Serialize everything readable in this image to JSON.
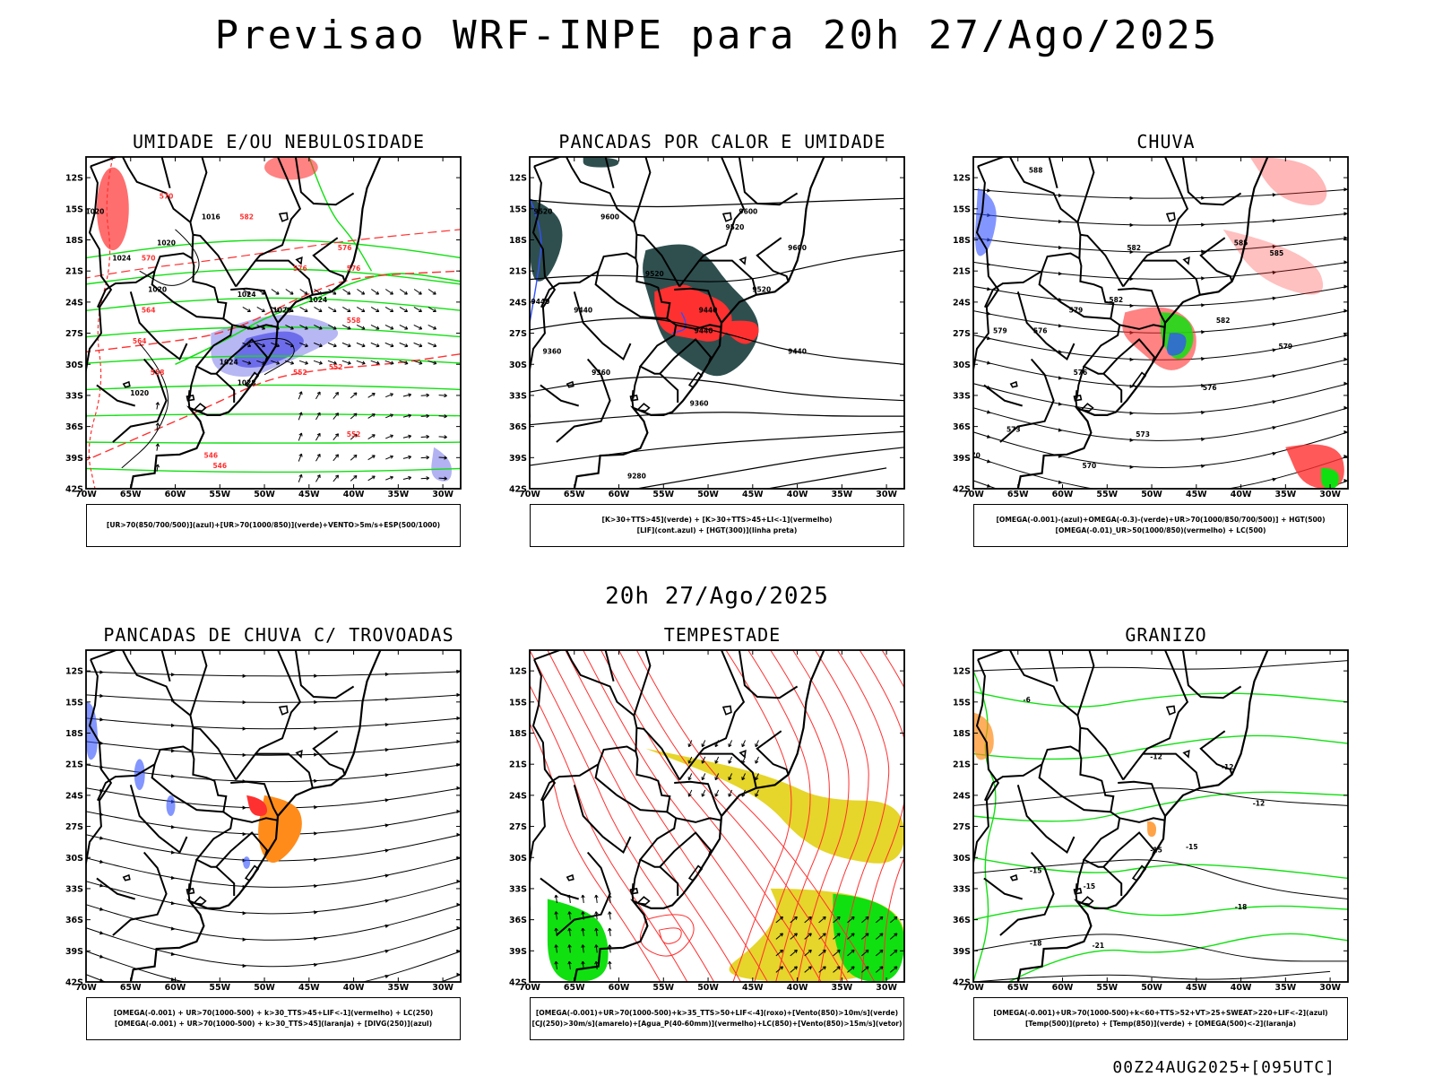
{
  "header": {
    "title": "Previsao WRF-INPE  para 20h 27/Ago/2025",
    "subtitle": "20h 27/Ago/2025",
    "footer": "00Z24AUG2025+[095UTC]"
  },
  "axes": {
    "lat_labels": [
      "12S",
      "15S",
      "18S",
      "21S",
      "24S",
      "27S",
      "30S",
      "33S",
      "36S",
      "39S",
      "42S"
    ],
    "lon_labels": [
      "70W",
      "65W",
      "60W",
      "55W",
      "50W",
      "45W",
      "40W",
      "35W",
      "30W"
    ]
  },
  "colors": {
    "red": "#ff3030",
    "green": "#10e010",
    "blue": "#3050ff",
    "lavender": "#9f9ff0",
    "darkteal": "#2f4f4f",
    "orange": "#ff8c1a",
    "yellow": "#e6d52a"
  },
  "panels": [
    {
      "id": "umidade",
      "title": "UMIDADE E/OU NEBULOSIDADE",
      "legend": [
        "[UR>70(850/700/500)](azul)+[UR>70(1000/850)](verde)+VENTO>5m/s+ESP(500/1000)"
      ],
      "labels": [
        "1020",
        "1016",
        "1020",
        "1024",
        "1020",
        "1024",
        "1020",
        "1024",
        "1028",
        "1024",
        "1020",
        "552",
        "570",
        "564",
        "582",
        "576",
        "576",
        "558",
        "552",
        "546",
        "570",
        "576",
        "564",
        "558",
        "552",
        "546"
      ]
    },
    {
      "id": "pancadas-calor",
      "title": "PANCADAS POR CALOR E UMIDADE",
      "legend": [
        "[K>30+TTS>45](verde) + [K>30+TTS>45+LI<-1](vermelho)",
        "[LIF](cont.azul) + [HGT(300)](linha preta)"
      ],
      "labels": [
        "9520",
        "9600",
        "9600",
        "9520",
        "9440",
        "9440",
        "9520",
        "9440",
        "9600",
        "9520",
        "9440",
        "9440",
        "9360",
        "9360",
        "9360",
        "9280"
      ]
    },
    {
      "id": "chuva",
      "title": "CHUVA",
      "legend": [
        "[OMEGA(-0.001)-(azul)+OMEGA(-0.3)-(verde)+UR>70(1000/850/700/500)] + HGT(500)",
        "[OMEGA(-0.01)_UR>50(1000/850)(vermelho) + LC(500)"
      ],
      "labels": [
        "588",
        "585",
        "582",
        "585",
        "582",
        "579",
        "579",
        "582",
        "576",
        "576",
        "579",
        "576",
        "573",
        "573",
        "570",
        "570"
      ]
    },
    {
      "id": "pancadas-trovoadas",
      "title": "PANCADAS DE CHUVA C/ TROVOADAS",
      "legend": [
        "[OMEGA(-0.001) + UR>70(1000-500) + k>30_TTS>45+LIF<-1](vermelho) + LC(250)",
        "[OMEGA(-0.001) + UR>70(1000-500) + k>30_TTS>45](laranja) + [DIVG(250)](azul)"
      ],
      "labels": []
    },
    {
      "id": "tempestade",
      "title": "TEMPESTADE",
      "legend": [
        "[OMEGA(-0.001)+UR>70(1000-500)+k>35_TTS>50+LIF<-4](roxo)+[Vento(850)>10m/s](verde)",
        "[CJ(250)>30m/s](amarelo)+[Agua_P(40-60mm)](vermelho)+LC(850)+[Vento(850)>15m/s](vetor)"
      ],
      "labels": []
    },
    {
      "id": "granizo",
      "title": "GRANIZO",
      "legend": [
        "[OMEGA(-0.001)+UR>70(1000-500)+k<60+TTS>52+VT>25+SWEAT>220+LIF<-2](azul)",
        "[Temp(500)](preto) + [Temp(850)](verde) + [OMEGA(500)<-2](laranja)"
      ],
      "labels": [
        "-12",
        "-12",
        "-12",
        "-15",
        "-15",
        "-18",
        "-15",
        "-21",
        "-18",
        "-6",
        "-15"
      ]
    }
  ]
}
